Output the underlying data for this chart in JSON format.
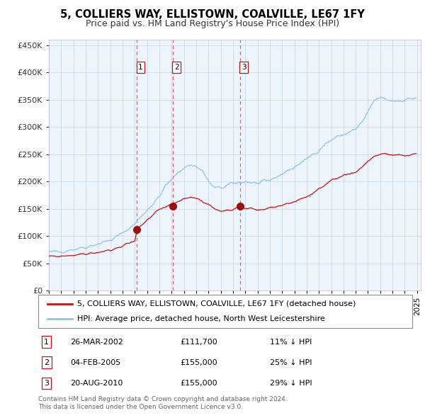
{
  "title": "5, COLLIERS WAY, ELLISTOWN, COALVILLE, LE67 1FY",
  "subtitle": "Price paid vs. HM Land Registry's House Price Index (HPI)",
  "hpi_label": "HPI: Average price, detached house, North West Leicestershire",
  "property_label": "5, COLLIERS WAY, ELLISTOWN, COALVILLE, LE67 1FY (detached house)",
  "sales": [
    {
      "date": "26-MAR-2002",
      "price": 111700,
      "label": "1",
      "pct": "11%",
      "dir": "↓"
    },
    {
      "date": "04-FEB-2005",
      "price": 155000,
      "label": "2",
      "pct": "25%",
      "dir": "↓"
    },
    {
      "date": "20-AUG-2010",
      "price": 155000,
      "label": "3",
      "pct": "29%",
      "dir": "↓"
    }
  ],
  "hpi_color": "#8dc4e8",
  "property_color": "#cc1111",
  "dashed_color": "#ee4444",
  "plot_bg": "#eef4fb",
  "grid_color": "#c5d5e5",
  "footnote": "Contains HM Land Registry data © Crown copyright and database right 2024.\nThis data is licensed under the Open Government Licence v3.0.",
  "ylim": [
    0,
    460000
  ],
  "yticks": [
    0,
    50000,
    100000,
    150000,
    200000,
    250000,
    300000,
    350000,
    400000,
    450000
  ]
}
